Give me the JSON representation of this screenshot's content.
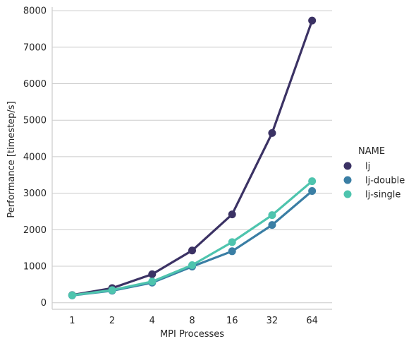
{
  "chart_data": {
    "type": "line",
    "title": "",
    "xlabel": "MPI Processes",
    "ylabel": "Performance [timestep/s]",
    "categories": [
      "1",
      "2",
      "4",
      "8",
      "16",
      "32",
      "64"
    ],
    "ylim": [
      -180,
      8100
    ],
    "yticks": [
      0,
      1000,
      2000,
      3000,
      4000,
      5000,
      6000,
      7000,
      8000
    ],
    "ytick_labels": [
      "0",
      "1000",
      "2000",
      "3000",
      "4000",
      "5000",
      "6000",
      "7000",
      "8000"
    ],
    "grid": "horizontal",
    "legend": {
      "title": "NAME",
      "placement": "right-outside"
    },
    "series": [
      {
        "name": "lj",
        "color": "#3b3264",
        "values": [
          210,
          400,
          780,
          1430,
          2420,
          4650,
          7730
        ]
      },
      {
        "name": "lj-double",
        "color": "#3a7ea4",
        "values": [
          200,
          330,
          550,
          990,
          1410,
          2130,
          3060
        ]
      },
      {
        "name": "lj-single",
        "color": "#4ec4ae",
        "values": [
          205,
          345,
          580,
          1030,
          1660,
          2400,
          3330
        ]
      }
    ]
  }
}
